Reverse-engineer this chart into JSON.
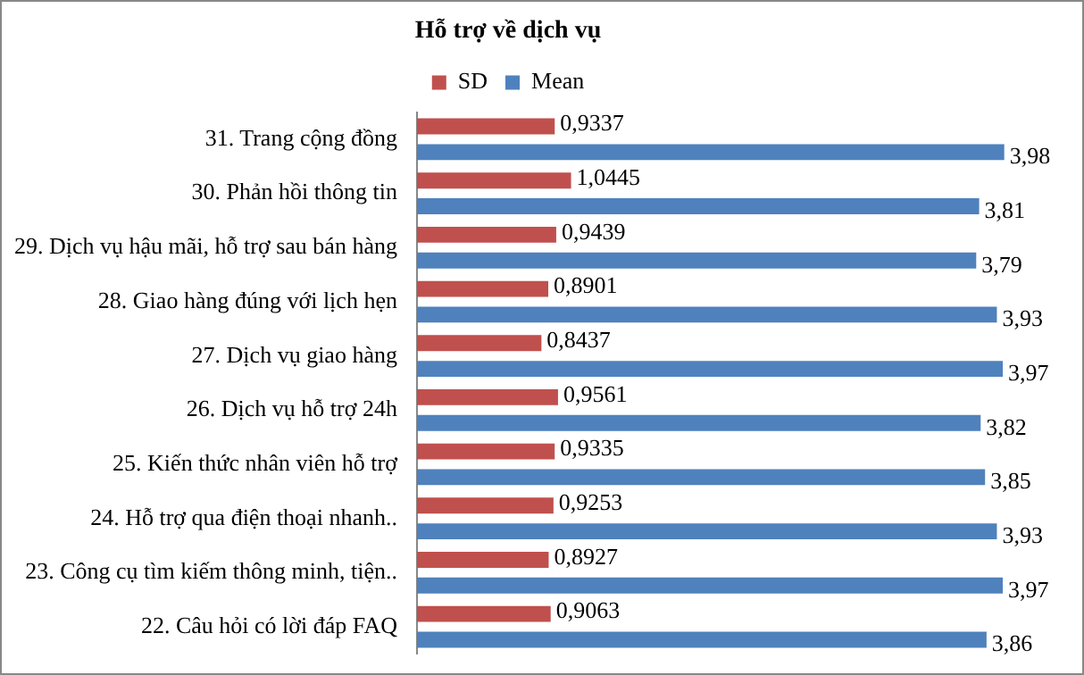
{
  "chart_data": {
    "type": "bar",
    "orientation": "horizontal",
    "title": "Hỗ trợ về dịch vụ",
    "legend": "top",
    "categories": [
      "31. Trang cộng đồng",
      "30. Phản hồi thông tin",
      "29. Dịch vụ hậu mãi, hỗ trợ sau bán hàng",
      "28. Giao hàng đúng với lịch hẹn",
      "27. Dịch vụ giao hàng",
      "26. Dịch vụ hỗ trợ 24h",
      "25. Kiến thức nhân viên hỗ trợ",
      "24. Hỗ trợ qua điện thoại nhanh..",
      "23. Công cụ tìm kiếm thông minh, tiện..",
      "22. Câu hỏi có lời đáp FAQ"
    ],
    "series": [
      {
        "name": "SD",
        "color": "#c0504d",
        "values": [
          0.9337,
          1.0445,
          0.9439,
          0.8901,
          0.8437,
          0.9561,
          0.9335,
          0.9253,
          0.8927,
          0.9063
        ],
        "value_labels": [
          "0,9337",
          "1,0445",
          "0,9439",
          "0,8901",
          "0,8437",
          "0,9561",
          "0,9335",
          "0,9253",
          "0,8927",
          "0,9063"
        ]
      },
      {
        "name": "Mean",
        "color": "#4f81bd",
        "values": [
          3.98,
          3.81,
          3.79,
          3.93,
          3.97,
          3.82,
          3.85,
          3.93,
          3.97,
          3.86
        ],
        "value_labels": [
          "3,98",
          "3,81",
          "3,79",
          "3,93",
          "3,97",
          "3,82",
          "3,85",
          "3,93",
          "3,97",
          "3,86"
        ]
      }
    ]
  }
}
